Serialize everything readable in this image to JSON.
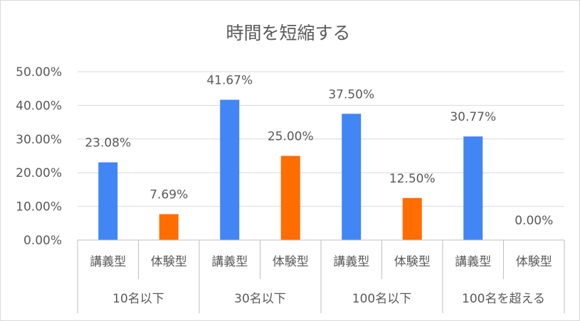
{
  "chart_data": {
    "type": "bar",
    "title": "時間を短縮する",
    "xlabel": "",
    "ylabel": "",
    "ylim": [
      0,
      50
    ],
    "y_ticks": [
      "0.00%",
      "10.00%",
      "20.00%",
      "30.00%",
      "40.00%",
      "50.00%"
    ],
    "y_tick_values": [
      0,
      10,
      20,
      30,
      40,
      50
    ],
    "grid": true,
    "legend": "none",
    "groups": [
      {
        "label": "10名以下",
        "bars": [
          {
            "category": "講義型",
            "value": 23.08,
            "label": "23.08%",
            "color": "#4285F4"
          },
          {
            "category": "体験型",
            "value": 7.69,
            "label": "7.69%",
            "color": "#FF6D00"
          }
        ]
      },
      {
        "label": "30名以下",
        "bars": [
          {
            "category": "講義型",
            "value": 41.67,
            "label": "41.67%",
            "color": "#4285F4"
          },
          {
            "category": "体験型",
            "value": 25.0,
            "label": "25.00%",
            "color": "#FF6D00"
          }
        ]
      },
      {
        "label": "100名以下",
        "bars": [
          {
            "category": "講義型",
            "value": 37.5,
            "label": "37.50%",
            "color": "#4285F4"
          },
          {
            "category": "体験型",
            "value": 12.5,
            "label": "12.50%",
            "color": "#FF6D00"
          }
        ]
      },
      {
        "label": "100名を超える",
        "bars": [
          {
            "category": "講義型",
            "value": 30.77,
            "label": "30.77%",
            "color": "#4285F4"
          },
          {
            "category": "体験型",
            "value": 0.0,
            "label": "0.00%",
            "color": "#FF6D00"
          }
        ]
      }
    ],
    "colors": {
      "grid": "#d9d9d9",
      "axis": "#bfbfbf",
      "text": "#595959"
    }
  }
}
